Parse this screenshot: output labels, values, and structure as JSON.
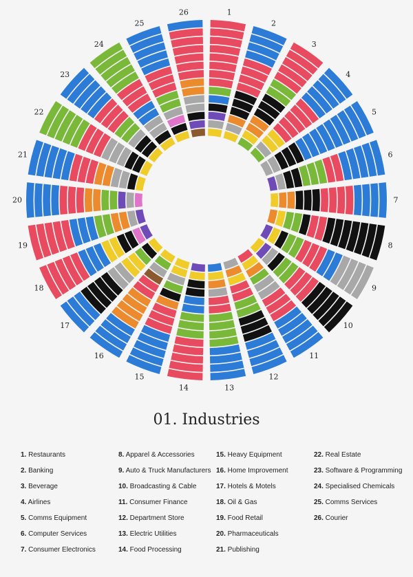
{
  "title": "01. Industries",
  "palette": {
    "blue": "#2c7bd6",
    "red": "#e84a5f",
    "green": "#7ab83a",
    "orange": "#ec8a2e",
    "gray": "#a8a8a8",
    "black": "#111111",
    "yellow": "#f0cc2a",
    "purple": "#6f4bb8",
    "pink": "#df74c8",
    "brown": "#8a5a2e",
    "background": "#f5f5f5"
  },
  "legend": [
    {
      "num": "1.",
      "label": "Restaurants"
    },
    {
      "num": "2.",
      "label": "Banking"
    },
    {
      "num": "3.",
      "label": "Beverage"
    },
    {
      "num": "4.",
      "label": "Airlines"
    },
    {
      "num": "5.",
      "label": "Comms Equipment"
    },
    {
      "num": "6.",
      "label": "Computer Services"
    },
    {
      "num": "7.",
      "label": "Consumer Electronics"
    },
    {
      "num": "8.",
      "label": "Apparel & Accessories"
    },
    {
      "num": "9.",
      "label": "Auto & Truck Manufacturers"
    },
    {
      "num": "10.",
      "label": "Broadcasting & Cable"
    },
    {
      "num": "11.",
      "label": "Consumer Finance"
    },
    {
      "num": "12.",
      "label": "Department Store"
    },
    {
      "num": "13.",
      "label": "Electric Utilities"
    },
    {
      "num": "14.",
      "label": "Food Processing"
    },
    {
      "num": "15.",
      "label": "Heavy Equipment"
    },
    {
      "num": "16.",
      "label": "Home Improvement"
    },
    {
      "num": "17.",
      "label": "Hotels & Motels"
    },
    {
      "num": "18.",
      "label": "Oil & Gas"
    },
    {
      "num": "19.",
      "label": "Food Retail"
    },
    {
      "num": "20.",
      "label": "Pharmaceuticals"
    },
    {
      "num": "21.",
      "label": "Publishing"
    },
    {
      "num": "22.",
      "label": "Real Estate"
    },
    {
      "num": "23.",
      "label": "Software & Programming"
    },
    {
      "num": "24.",
      "label": "Specialised Chemicals"
    },
    {
      "num": "25.",
      "label": "Comms Services"
    },
    {
      "num": "26.",
      "label": "Courier"
    }
  ],
  "sectors": [
    {
      "label": "1",
      "colors": [
        "red",
        "red",
        "red",
        "red",
        "red",
        "red",
        "red",
        "red",
        "green",
        "blue",
        "black",
        "purple",
        "gray",
        "yellow"
      ]
    },
    {
      "label": "2",
      "colors": [
        "blue",
        "blue",
        "blue",
        "blue",
        "red",
        "red",
        "red",
        "red",
        "black",
        "black",
        "black",
        "orange",
        "gray",
        "yellow"
      ]
    },
    {
      "label": "3",
      "colors": [
        "red",
        "red",
        "red",
        "red",
        "red",
        "green",
        "green",
        "black",
        "black",
        "black",
        "orange",
        "orange",
        "yellow",
        "green"
      ]
    },
    {
      "label": "4",
      "colors": [
        "blue",
        "blue",
        "blue",
        "blue",
        "blue",
        "red",
        "red",
        "red",
        "red",
        "red",
        "yellow",
        "yellow",
        "gray",
        "green"
      ]
    },
    {
      "label": "5",
      "colors": [
        "blue",
        "blue",
        "blue",
        "blue",
        "blue",
        "blue",
        "blue",
        "blue",
        "blue",
        "black",
        "black",
        "black",
        "gray",
        "gray"
      ]
    },
    {
      "label": "6",
      "colors": [
        "blue",
        "blue",
        "blue",
        "blue",
        "blue",
        "red",
        "red",
        "green",
        "green",
        "green",
        "black",
        "black",
        "gray",
        "purple"
      ]
    },
    {
      "label": "7",
      "colors": [
        "blue",
        "blue",
        "blue",
        "blue",
        "red",
        "red",
        "red",
        "red",
        "black",
        "black",
        "black",
        "orange",
        "orange",
        "yellow"
      ]
    },
    {
      "label": "8",
      "colors": [
        "black",
        "black",
        "black",
        "black",
        "black",
        "black",
        "black",
        "red",
        "red",
        "black",
        "green",
        "green",
        "yellow",
        "orange"
      ]
    },
    {
      "label": "9",
      "colors": [
        "gray",
        "gray",
        "gray",
        "gray",
        "blue",
        "blue",
        "red",
        "red",
        "red",
        "green",
        "green",
        "black",
        "yellow",
        "purple"
      ]
    },
    {
      "label": "10",
      "colors": [
        "black",
        "black",
        "black",
        "black",
        "black",
        "red",
        "red",
        "red",
        "green",
        "green",
        "black",
        "gray",
        "purple",
        "yellow"
      ]
    },
    {
      "label": "11",
      "colors": [
        "blue",
        "blue",
        "blue",
        "blue",
        "blue",
        "red",
        "red",
        "red",
        "gray",
        "gray",
        "green",
        "orange",
        "yellow",
        "red"
      ]
    },
    {
      "label": "12",
      "colors": [
        "blue",
        "blue",
        "blue",
        "blue",
        "black",
        "black",
        "black",
        "green",
        "green",
        "red",
        "red",
        "yellow",
        "orange",
        "gray"
      ]
    },
    {
      "label": "13",
      "colors": [
        "blue",
        "blue",
        "blue",
        "blue",
        "green",
        "green",
        "green",
        "green",
        "red",
        "red",
        "gray",
        "orange",
        "yellow",
        "blue"
      ]
    },
    {
      "label": "14",
      "colors": [
        "red",
        "red",
        "red",
        "red",
        "red",
        "green",
        "green",
        "green",
        "blue",
        "blue",
        "black",
        "black",
        "yellow",
        "purple"
      ]
    },
    {
      "label": "15",
      "colors": [
        "blue",
        "blue",
        "blue",
        "blue",
        "blue",
        "red",
        "red",
        "red",
        "orange",
        "black",
        "green",
        "gray",
        "yellow",
        "yellow"
      ]
    },
    {
      "label": "16",
      "colors": [
        "blue",
        "blue",
        "blue",
        "blue",
        "orange",
        "orange",
        "orange",
        "orange",
        "red",
        "red",
        "brown",
        "gray",
        "green",
        "yellow"
      ]
    },
    {
      "label": "17",
      "colors": [
        "blue",
        "blue",
        "blue",
        "black",
        "black",
        "black",
        "black",
        "gray",
        "gray",
        "yellow",
        "yellow",
        "green",
        "black",
        "yellow"
      ]
    },
    {
      "label": "18",
      "colors": [
        "red",
        "red",
        "red",
        "red",
        "red",
        "blue",
        "blue",
        "blue",
        "yellow",
        "yellow",
        "black",
        "black",
        "pink",
        "purple"
      ]
    },
    {
      "label": "19",
      "colors": [
        "red",
        "red",
        "red",
        "red",
        "red",
        "blue",
        "blue",
        "blue",
        "green",
        "green",
        "orange",
        "orange",
        "gray",
        "purple"
      ]
    },
    {
      "label": "20",
      "colors": [
        "blue",
        "blue",
        "blue",
        "blue",
        "red",
        "red",
        "red",
        "orange",
        "orange",
        "green",
        "green",
        "purple",
        "gray",
        "pink"
      ]
    },
    {
      "label": "21",
      "colors": [
        "blue",
        "blue",
        "blue",
        "blue",
        "blue",
        "red",
        "red",
        "red",
        "orange",
        "orange",
        "gray",
        "gray",
        "black",
        "yellow"
      ]
    },
    {
      "label": "22",
      "colors": [
        "green",
        "green",
        "green",
        "green",
        "green",
        "red",
        "red",
        "red",
        "gray",
        "gray",
        "gray",
        "black",
        "black",
        "yellow"
      ]
    },
    {
      "label": "23",
      "colors": [
        "blue",
        "blue",
        "blue",
        "blue",
        "blue",
        "red",
        "red",
        "red",
        "green",
        "green",
        "gray",
        "black",
        "black",
        "yellow"
      ]
    },
    {
      "label": "24",
      "colors": [
        "green",
        "green",
        "green",
        "green",
        "green",
        "red",
        "red",
        "red",
        "blue",
        "blue",
        "gray",
        "gray",
        "black",
        "yellow"
      ]
    },
    {
      "label": "25",
      "colors": [
        "blue",
        "blue",
        "blue",
        "blue",
        "blue",
        "red",
        "red",
        "red",
        "green",
        "green",
        "gray",
        "pink",
        "black",
        "yellow"
      ]
    },
    {
      "label": "26",
      "colors": [
        "blue",
        "red",
        "red",
        "red",
        "red",
        "red",
        "red",
        "orange",
        "orange",
        "gray",
        "gray",
        "black",
        "purple",
        "brown"
      ]
    }
  ]
}
